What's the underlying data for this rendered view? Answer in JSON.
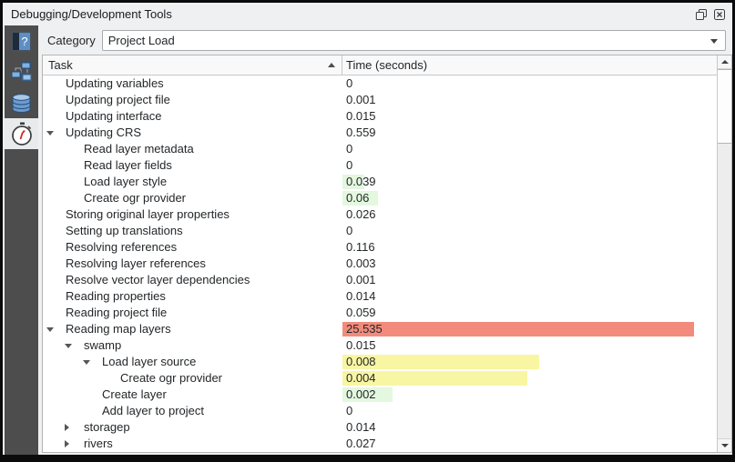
{
  "window": {
    "title": "Debugging/Development Tools"
  },
  "titlebar": {
    "buttons": [
      {
        "name": "float",
        "icon": "float-icon"
      },
      {
        "name": "close",
        "icon": "close-icon"
      }
    ]
  },
  "sidebar": {
    "items": [
      {
        "name": "help",
        "icon": "help-book-icon",
        "selected": false
      },
      {
        "name": "network",
        "icon": "network-icon",
        "selected": false
      },
      {
        "name": "database",
        "icon": "database-icon",
        "selected": false
      },
      {
        "name": "profiler",
        "icon": "stopwatch-icon",
        "selected": true
      }
    ]
  },
  "toolbar": {
    "category_label": "Category",
    "category_value": "Project Load"
  },
  "table": {
    "columns": [
      {
        "label": "Task",
        "sort": "asc"
      },
      {
        "label": "Time (seconds)",
        "sort": null
      }
    ],
    "palette": {
      "red": "#f28b7c",
      "yellow": "#f8f6a2",
      "green": "#e4f7df"
    },
    "rows": [
      {
        "level": 0,
        "expand": null,
        "task": "Updating variables",
        "time": "0",
        "bar": null
      },
      {
        "level": 0,
        "expand": null,
        "task": "Updating project file",
        "time": "0.001",
        "bar": null
      },
      {
        "level": 0,
        "expand": null,
        "task": "Updating interface",
        "time": "0.015",
        "bar": null
      },
      {
        "level": 0,
        "expand": "open",
        "task": "Updating CRS",
        "time": "0.559",
        "bar": null
      },
      {
        "level": 1,
        "expand": null,
        "task": "Read layer metadata",
        "time": "0",
        "bar": null
      },
      {
        "level": 1,
        "expand": null,
        "task": "Read layer fields",
        "time": "0",
        "bar": null
      },
      {
        "level": 1,
        "expand": null,
        "task": "Load layer style",
        "time": "0.039",
        "bar": {
          "color": "green",
          "frac": 0.058
        }
      },
      {
        "level": 1,
        "expand": null,
        "task": "Create ogr provider",
        "time": "0.06",
        "bar": {
          "color": "green",
          "frac": 0.094
        }
      },
      {
        "level": 0,
        "expand": null,
        "task": "Storing original layer properties",
        "time": "0.026",
        "bar": null
      },
      {
        "level": 0,
        "expand": null,
        "task": "Setting up translations",
        "time": "0",
        "bar": null
      },
      {
        "level": 0,
        "expand": null,
        "task": "Resolving references",
        "time": "0.116",
        "bar": null
      },
      {
        "level": 0,
        "expand": null,
        "task": "Resolving layer references",
        "time": "0.003",
        "bar": null
      },
      {
        "level": 0,
        "expand": null,
        "task": "Resolve vector layer dependencies",
        "time": "0.001",
        "bar": null
      },
      {
        "level": 0,
        "expand": null,
        "task": "Reading properties",
        "time": "0.014",
        "bar": null
      },
      {
        "level": 0,
        "expand": null,
        "task": "Reading project file",
        "time": "0.059",
        "bar": null
      },
      {
        "level": 0,
        "expand": "open",
        "task": "Reading map layers",
        "time": "25.535",
        "bar": {
          "color": "red",
          "frac": 0.94
        }
      },
      {
        "level": 1,
        "expand": "open",
        "task": "swamp",
        "time": "0.015",
        "bar": null
      },
      {
        "level": 2,
        "expand": "open",
        "task": "Load layer source",
        "time": "0.008",
        "bar": {
          "color": "yellow",
          "frac": 0.525
        }
      },
      {
        "level": 3,
        "expand": null,
        "task": "Create ogr provider",
        "time": "0.004",
        "bar": {
          "color": "yellow",
          "frac": 0.495
        }
      },
      {
        "level": 2,
        "expand": null,
        "task": "Create layer",
        "time": "0.002",
        "bar": {
          "color": "green",
          "frac": 0.133
        }
      },
      {
        "level": 2,
        "expand": null,
        "task": "Add layer to project",
        "time": "0",
        "bar": null
      },
      {
        "level": 1,
        "expand": "closed",
        "task": "storagep",
        "time": "0.014",
        "bar": null
      },
      {
        "level": 1,
        "expand": "closed",
        "task": "rivers",
        "time": "0.027",
        "bar": null
      }
    ]
  }
}
